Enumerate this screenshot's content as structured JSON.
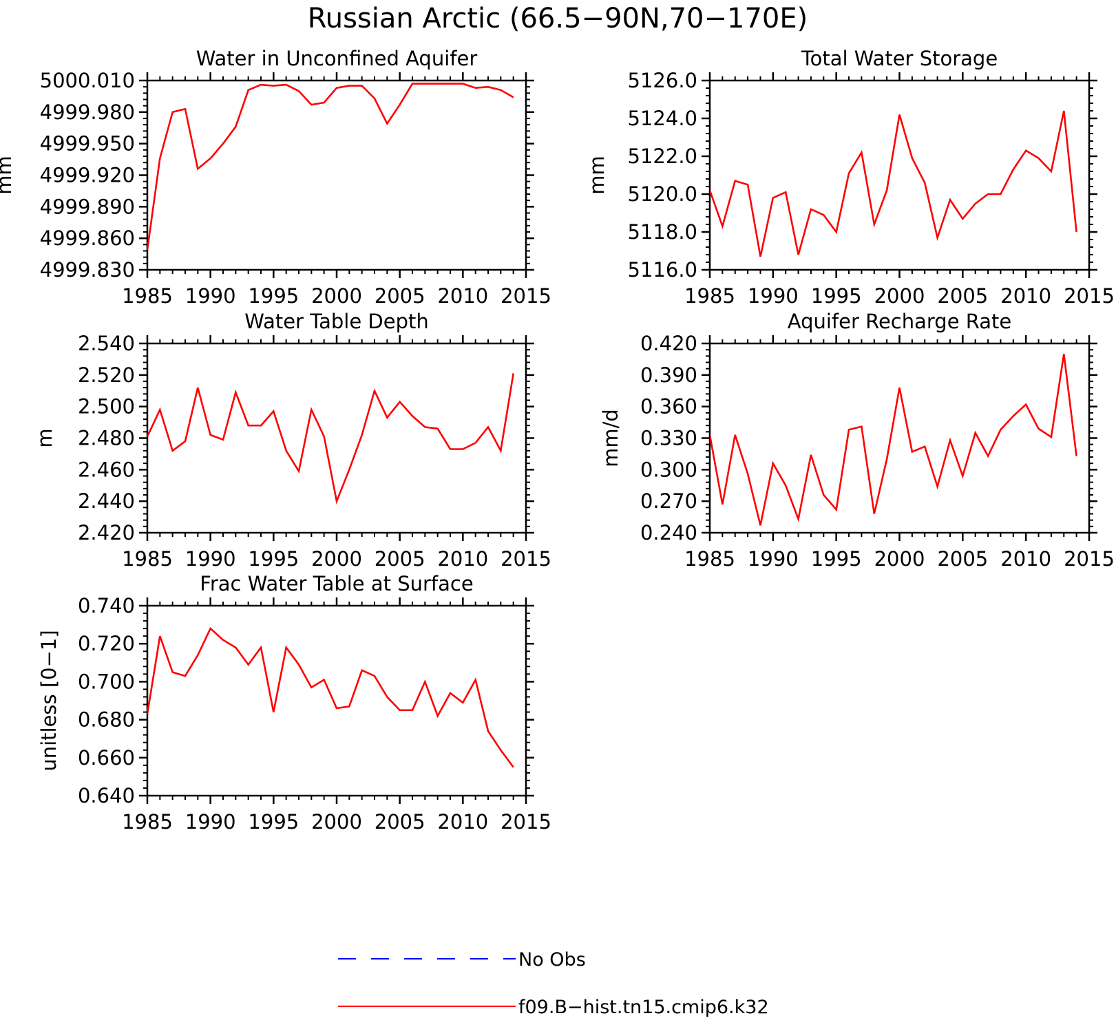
{
  "figure": {
    "title": "Russian Arctic (66.5−90N,70−170E)"
  },
  "colors": {
    "model_line": "#ff0000",
    "obs_line": "#0000ff",
    "axis": "#000000"
  },
  "legend": {
    "placement": "bottom-center",
    "entries": [
      {
        "label": "No Obs",
        "style": "dashed",
        "color": "#0000ff"
      },
      {
        "label": "f09.B−hist.tn15.cmip6.k32",
        "style": "solid",
        "color": "#ff0000"
      }
    ]
  },
  "chart_data": [
    {
      "type": "line",
      "title": "Water in Unconfined Aquifer",
      "ylabel": "mm",
      "xlim": [
        1985,
        2015
      ],
      "ylim": [
        4999.83,
        5000.01
      ],
      "xticks": [
        "1985",
        "1990",
        "1995",
        "2000",
        "2005",
        "2010",
        "2015"
      ],
      "yticks": [
        "4999.830",
        "4999.860",
        "4999.890",
        "4999.920",
        "4999.950",
        "4999.980",
        "5000.010"
      ],
      "series": [
        {
          "x": [
            1985,
            1986,
            1987,
            1988,
            1989,
            1990,
            1991,
            1992,
            1993,
            1994,
            1995,
            1996,
            1997,
            1998,
            1999,
            2000,
            2001,
            2002,
            2003,
            2004,
            2005,
            2006,
            2007,
            2008,
            2009,
            2010,
            2011,
            2012,
            2013,
            2014
          ],
          "values": [
            4999.849,
            4999.936,
            4999.98,
            4999.983,
            4999.926,
            4999.936,
            4999.95,
            4999.966,
            5000.001,
            5000.006,
            5000.005,
            5000.006,
            5000.0,
            4999.987,
            4999.989,
            5000.003,
            5000.005,
            5000.005,
            4999.993,
            4999.969,
            4999.987,
            5000.007,
            5000.007,
            5000.007,
            5000.007,
            5000.007,
            5000.003,
            5000.004,
            5000.001,
            4999.994
          ]
        }
      ]
    },
    {
      "type": "line",
      "title": "Total Water Storage",
      "ylabel": "mm",
      "xlim": [
        1985,
        2015
      ],
      "ylim": [
        5116.0,
        5126.0
      ],
      "xticks": [
        "1985",
        "1990",
        "1995",
        "2000",
        "2005",
        "2010",
        "2015"
      ],
      "yticks": [
        "5116.0",
        "5118.0",
        "5120.0",
        "5122.0",
        "5124.0",
        "5126.0"
      ],
      "series": [
        {
          "x": [
            1985,
            1986,
            1987,
            1988,
            1989,
            1990,
            1991,
            1992,
            1993,
            1994,
            1995,
            1996,
            1997,
            1998,
            1999,
            2000,
            2001,
            2002,
            2003,
            2004,
            2005,
            2006,
            2007,
            2008,
            2009,
            2010,
            2011,
            2012,
            2013,
            2014
          ],
          "values": [
            5120.2,
            5118.3,
            5120.7,
            5120.5,
            5116.7,
            5119.8,
            5120.1,
            5116.8,
            5119.2,
            5118.9,
            5118.0,
            5121.1,
            5122.2,
            5118.4,
            5120.2,
            5124.2,
            5121.9,
            5120.6,
            5117.7,
            5119.7,
            5118.7,
            5119.5,
            5120.0,
            5120.0,
            5121.3,
            5122.3,
            5121.9,
            5121.2,
            5124.4,
            5118.0
          ]
        }
      ]
    },
    {
      "type": "line",
      "title": "Water Table Depth",
      "ylabel": "m",
      "xlim": [
        1985,
        2015
      ],
      "ylim": [
        2.42,
        2.54
      ],
      "xticks": [
        "1985",
        "1990",
        "1995",
        "2000",
        "2005",
        "2010",
        "2015"
      ],
      "yticks": [
        "2.420",
        "2.440",
        "2.460",
        "2.480",
        "2.500",
        "2.520",
        "2.540"
      ],
      "series": [
        {
          "x": [
            1985,
            1986,
            1987,
            1988,
            1989,
            1990,
            1991,
            1992,
            1993,
            1994,
            1995,
            1996,
            1997,
            1998,
            1999,
            2000,
            2001,
            2002,
            2003,
            2004,
            2005,
            2006,
            2007,
            2008,
            2009,
            2010,
            2011,
            2012,
            2013,
            2014
          ],
          "values": [
            2.481,
            2.498,
            2.472,
            2.478,
            2.512,
            2.482,
            2.479,
            2.509,
            2.488,
            2.488,
            2.497,
            2.472,
            2.459,
            2.498,
            2.481,
            2.44,
            2.46,
            2.482,
            2.51,
            2.493,
            2.503,
            2.494,
            2.487,
            2.486,
            2.473,
            2.473,
            2.477,
            2.487,
            2.472,
            2.521
          ]
        }
      ]
    },
    {
      "type": "line",
      "title": "Aquifer Recharge Rate",
      "ylabel": "mm/d",
      "xlim": [
        1985,
        2015
      ],
      "ylim": [
        0.24,
        0.42
      ],
      "xticks": [
        "1985",
        "1990",
        "1995",
        "2000",
        "2005",
        "2010",
        "2015"
      ],
      "yticks": [
        "0.240",
        "0.270",
        "0.300",
        "0.330",
        "0.360",
        "0.390",
        "0.420"
      ],
      "series": [
        {
          "x": [
            1985,
            1986,
            1987,
            1988,
            1989,
            1990,
            1991,
            1992,
            1993,
            1994,
            1995,
            1996,
            1997,
            1998,
            1999,
            2000,
            2001,
            2002,
            2003,
            2004,
            2005,
            2006,
            2007,
            2008,
            2009,
            2010,
            2011,
            2012,
            2013,
            2014
          ],
          "values": [
            0.333,
            0.267,
            0.333,
            0.296,
            0.247,
            0.306,
            0.285,
            0.253,
            0.314,
            0.276,
            0.262,
            0.338,
            0.341,
            0.258,
            0.31,
            0.378,
            0.317,
            0.322,
            0.284,
            0.328,
            0.294,
            0.335,
            0.313,
            0.338,
            0.351,
            0.362,
            0.339,
            0.331,
            0.41,
            0.313
          ]
        }
      ]
    },
    {
      "type": "line",
      "title": "Frac Water Table at Surface",
      "ylabel": "unitless [0−1]",
      "xlim": [
        1985,
        2015
      ],
      "ylim": [
        0.64,
        0.74
      ],
      "xticks": [
        "1985",
        "1990",
        "1995",
        "2000",
        "2005",
        "2010",
        "2015"
      ],
      "yticks": [
        "0.640",
        "0.660",
        "0.680",
        "0.700",
        "0.720",
        "0.740"
      ],
      "series": [
        {
          "x": [
            1985,
            1986,
            1987,
            1988,
            1989,
            1990,
            1991,
            1992,
            1993,
            1994,
            1995,
            1996,
            1997,
            1998,
            1999,
            2000,
            2001,
            2002,
            2003,
            2004,
            2005,
            2006,
            2007,
            2008,
            2009,
            2010,
            2011,
            2012,
            2013,
            2014
          ],
          "values": [
            0.683,
            0.724,
            0.705,
            0.703,
            0.714,
            0.728,
            0.722,
            0.718,
            0.709,
            0.718,
            0.684,
            0.718,
            0.709,
            0.697,
            0.701,
            0.686,
            0.687,
            0.706,
            0.703,
            0.692,
            0.685,
            0.685,
            0.7,
            0.682,
            0.694,
            0.689,
            0.701,
            0.674,
            0.664,
            0.655
          ]
        }
      ]
    }
  ]
}
